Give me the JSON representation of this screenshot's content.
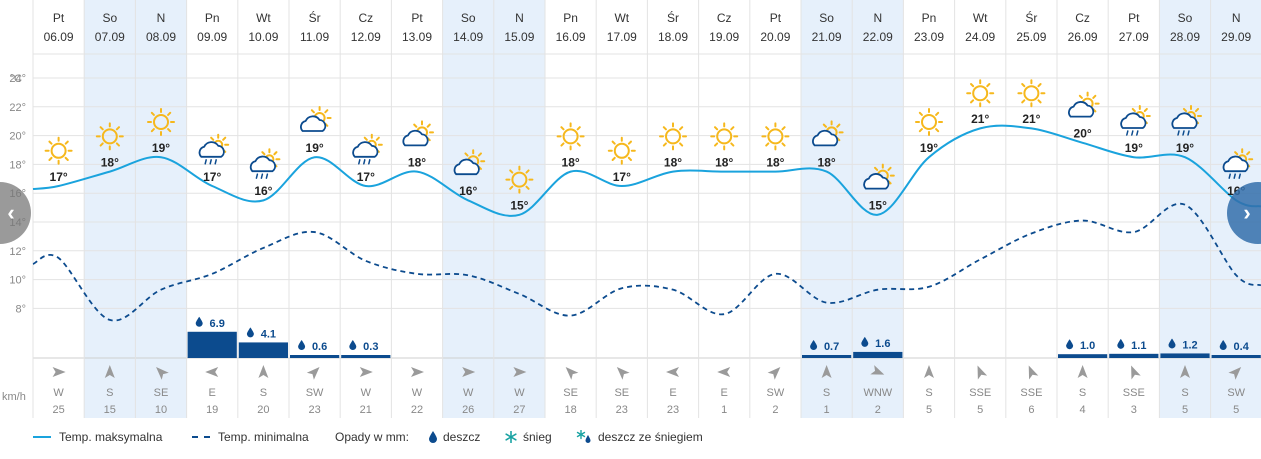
{
  "chart_data": {
    "type": "line",
    "days": [
      {
        "name": "Pt",
        "date": "06.09",
        "weekend": false,
        "icon": "sun-icon",
        "max": 17,
        "min": 11.5,
        "precip": null,
        "wind_dir": "W",
        "wind_speed": "25"
      },
      {
        "name": "So",
        "date": "07.09",
        "weekend": true,
        "icon": "sun-icon",
        "max": 18,
        "min": 7.2,
        "precip": null,
        "wind_dir": "S",
        "wind_speed": "15"
      },
      {
        "name": "N",
        "date": "08.09",
        "weekend": true,
        "icon": "sun-icon",
        "max": 19,
        "min": 9.3,
        "precip": null,
        "wind_dir": "SE",
        "wind_speed": "10"
      },
      {
        "name": "Pn",
        "date": "09.09",
        "weekend": false,
        "icon": "sun-cloud-rain-icon",
        "max": 17,
        "min": 10.4,
        "precip": 6.9,
        "precip_label": "6.9",
        "wind_dir": "E",
        "wind_speed": "19"
      },
      {
        "name": "Wt",
        "date": "10.09",
        "weekend": false,
        "icon": "sun-cloud-rain-icon",
        "max": 16,
        "min": 12.2,
        "precip": 4.1,
        "precip_label": "4.1",
        "wind_dir": "S",
        "wind_speed": "20"
      },
      {
        "name": "Śr",
        "date": "11.09",
        "weekend": false,
        "icon": "sun-cloud-icon",
        "max": 19,
        "min": 13.3,
        "precip": 0.6,
        "precip_label": "0.6",
        "wind_dir": "SW",
        "wind_speed": "23"
      },
      {
        "name": "Cz",
        "date": "12.09",
        "weekend": false,
        "icon": "sun-cloud-rain-icon",
        "max": 17,
        "min": 11.3,
        "precip": 0.3,
        "precip_label": "0.3",
        "wind_dir": "W",
        "wind_speed": "21"
      },
      {
        "name": "Pt",
        "date": "13.09",
        "weekend": false,
        "icon": "sun-cloud-icon",
        "max": 18,
        "min": 10.4,
        "precip": null,
        "wind_dir": "W",
        "wind_speed": "22"
      },
      {
        "name": "So",
        "date": "14.09",
        "weekend": true,
        "icon": "sun-cloud-icon",
        "max": 16,
        "min": 10.3,
        "precip": null,
        "wind_dir": "W",
        "wind_speed": "26"
      },
      {
        "name": "N",
        "date": "15.09",
        "weekend": true,
        "icon": "sun-icon",
        "max": 15,
        "min": 9.0,
        "precip": null,
        "wind_dir": "W",
        "wind_speed": "27"
      },
      {
        "name": "Pn",
        "date": "16.09",
        "weekend": false,
        "icon": "sun-icon",
        "max": 18,
        "min": 7.5,
        "precip": null,
        "wind_dir": "SE",
        "wind_speed": "18"
      },
      {
        "name": "Wt",
        "date": "17.09",
        "weekend": false,
        "icon": "sun-icon",
        "max": 17,
        "min": 9.4,
        "precip": null,
        "wind_dir": "SE",
        "wind_speed": "23"
      },
      {
        "name": "Śr",
        "date": "18.09",
        "weekend": false,
        "icon": "sun-icon",
        "max": 18,
        "min": 9.3,
        "precip": null,
        "wind_dir": "E",
        "wind_speed": "23"
      },
      {
        "name": "Cz",
        "date": "19.09",
        "weekend": false,
        "icon": "sun-icon",
        "max": 18,
        "min": 7.6,
        "precip": null,
        "wind_dir": "E",
        "wind_speed": "1"
      },
      {
        "name": "Pt",
        "date": "20.09",
        "weekend": false,
        "icon": "sun-icon",
        "max": 18,
        "min": 10.4,
        "precip": null,
        "wind_dir": "SW",
        "wind_speed": "2"
      },
      {
        "name": "So",
        "date": "21.09",
        "weekend": true,
        "icon": "sun-cloud-icon",
        "max": 18,
        "min": 8.4,
        "precip": 0.7,
        "precip_label": "0.7",
        "wind_dir": "S",
        "wind_speed": "1"
      },
      {
        "name": "N",
        "date": "22.09",
        "weekend": true,
        "icon": "sun-cloud-icon",
        "max": 15,
        "min": 9.3,
        "precip": 1.6,
        "precip_label": "1.6",
        "wind_dir": "WNW",
        "wind_speed": "2"
      },
      {
        "name": "Pn",
        "date": "23.09",
        "weekend": false,
        "icon": "sun-icon",
        "max": 19,
        "min": 9.5,
        "precip": null,
        "wind_dir": "S",
        "wind_speed": "5"
      },
      {
        "name": "Wt",
        "date": "24.09",
        "weekend": false,
        "icon": "sun-icon",
        "max": 21,
        "min": 11.4,
        "precip": null,
        "wind_dir": "SSE",
        "wind_speed": "5"
      },
      {
        "name": "Śr",
        "date": "25.09",
        "weekend": false,
        "icon": "sun-icon",
        "max": 21,
        "min": 13.2,
        "precip": null,
        "wind_dir": "SSE",
        "wind_speed": "6"
      },
      {
        "name": "Cz",
        "date": "26.09",
        "weekend": false,
        "icon": "sun-cloud-icon",
        "max": 20,
        "min": 14.1,
        "precip": 1.0,
        "precip_label": "1.0",
        "wind_dir": "S",
        "wind_speed": "4"
      },
      {
        "name": "Pt",
        "date": "27.09",
        "weekend": false,
        "icon": "sun-cloud-rain-icon",
        "max": 19,
        "min": 13.3,
        "precip": 1.1,
        "precip_label": "1.1",
        "wind_dir": "SSE",
        "wind_speed": "3"
      },
      {
        "name": "So",
        "date": "28.09",
        "weekend": true,
        "icon": "sun-cloud-rain-icon",
        "max": 19,
        "min": 15.2,
        "precip": 1.2,
        "precip_label": "1.2",
        "wind_dir": "S",
        "wind_speed": "5"
      },
      {
        "name": "N",
        "date": "29.09",
        "weekend": true,
        "icon": "sun-cloud-rain-icon",
        "max": 16,
        "min": 10.3,
        "precip": 0.4,
        "precip_label": "0.4",
        "wind_dir": "SW",
        "wind_speed": "5"
      }
    ],
    "y_unit": "°C",
    "y_ticks": [
      "24°",
      "22°",
      "20°",
      "18°",
      "16°",
      "14°",
      "12°",
      "10°",
      "8°"
    ],
    "y_tick_values": [
      24,
      22,
      20,
      18,
      16,
      14,
      12,
      10,
      8
    ],
    "ylim": [
      6,
      26
    ],
    "wind_unit": "km/h",
    "series": [
      {
        "name": "Temp. maksymalna",
        "key": "max"
      },
      {
        "name": "Temp. minimalna",
        "key": "min"
      }
    ]
  },
  "legend": {
    "max_label": "Temp. maksymalna",
    "min_label": "Temp. minimalna",
    "precip_title": "Opady w mm:",
    "rain_label": "deszcz",
    "snow_label": "śnieg",
    "sleet_label": "deszcz ze śniegiem"
  },
  "nav": {
    "prev": "‹",
    "next": "›"
  },
  "colors": {
    "max_line": "#1aa3dd",
    "min_line": "#0c4b8e",
    "precip_bar": "#0c4b8e",
    "weekend_bg": "#e6f0fb",
    "grid": "#e3e3e3",
    "sun": "#f6b81c"
  }
}
